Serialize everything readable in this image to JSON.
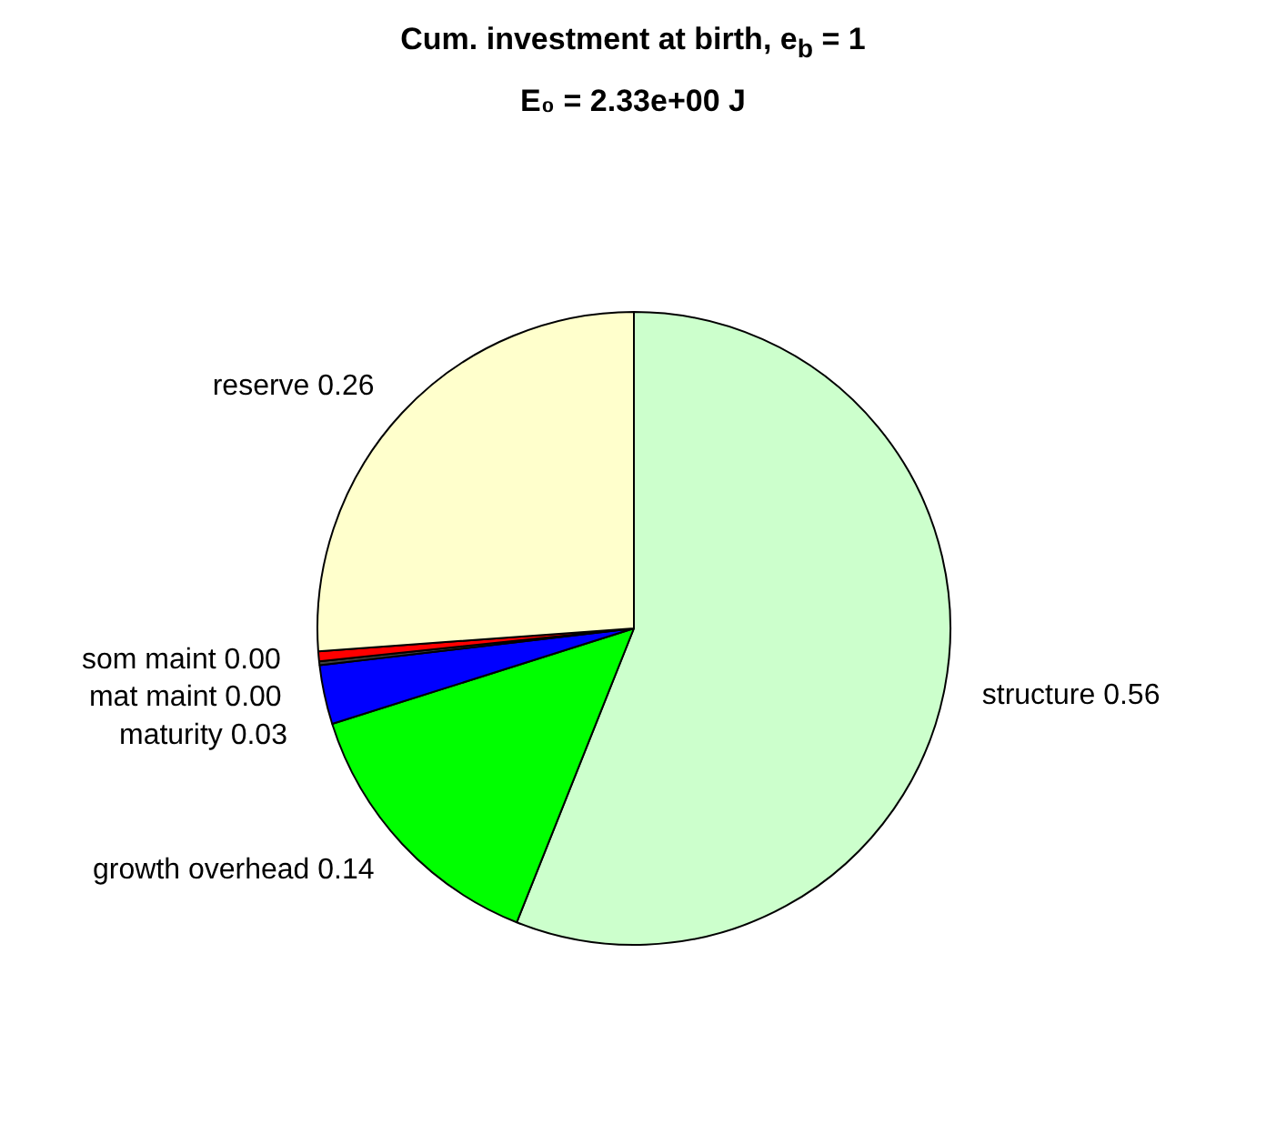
{
  "chart_data": {
    "type": "pie",
    "title": "Cum. investment at birth, e$_{b}$ = 1",
    "subtitle": "E₀ = 2.33e+00 J",
    "categories": [
      "structure",
      "growth overhead",
      "maturity",
      "mat maint",
      "som maint",
      "reserve"
    ],
    "values": [
      0.557,
      0.14,
      0.03,
      0.002,
      0.005,
      0.26
    ],
    "value_labels": [
      "0.56",
      "0.14",
      "0.03",
      "0.00",
      "0.00",
      "0.26"
    ],
    "colors": [
      "#ccffcc",
      "#00ff00",
      "#0000ff",
      "#404040",
      "#ff0000",
      "#ffffcc"
    ]
  }
}
